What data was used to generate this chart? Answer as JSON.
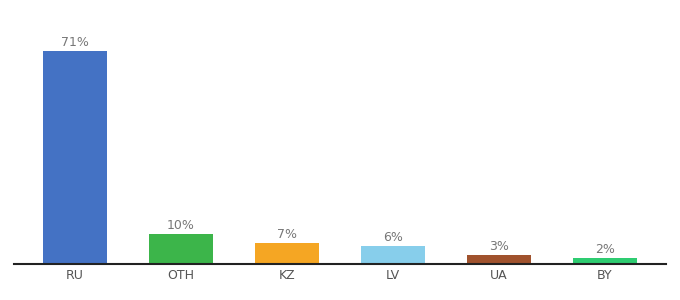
{
  "categories": [
    "RU",
    "OTH",
    "KZ",
    "LV",
    "UA",
    "BY"
  ],
  "values": [
    71,
    10,
    7,
    6,
    3,
    2
  ],
  "bar_colors": [
    "#4472c4",
    "#3cb54a",
    "#f5a623",
    "#87ceeb",
    "#a0522d",
    "#2ecc71"
  ],
  "labels": [
    "71%",
    "10%",
    "7%",
    "6%",
    "3%",
    "2%"
  ],
  "ylim": [
    0,
    80
  ],
  "background_color": "#ffffff",
  "label_fontsize": 9,
  "tick_fontsize": 9,
  "bar_width": 0.6
}
